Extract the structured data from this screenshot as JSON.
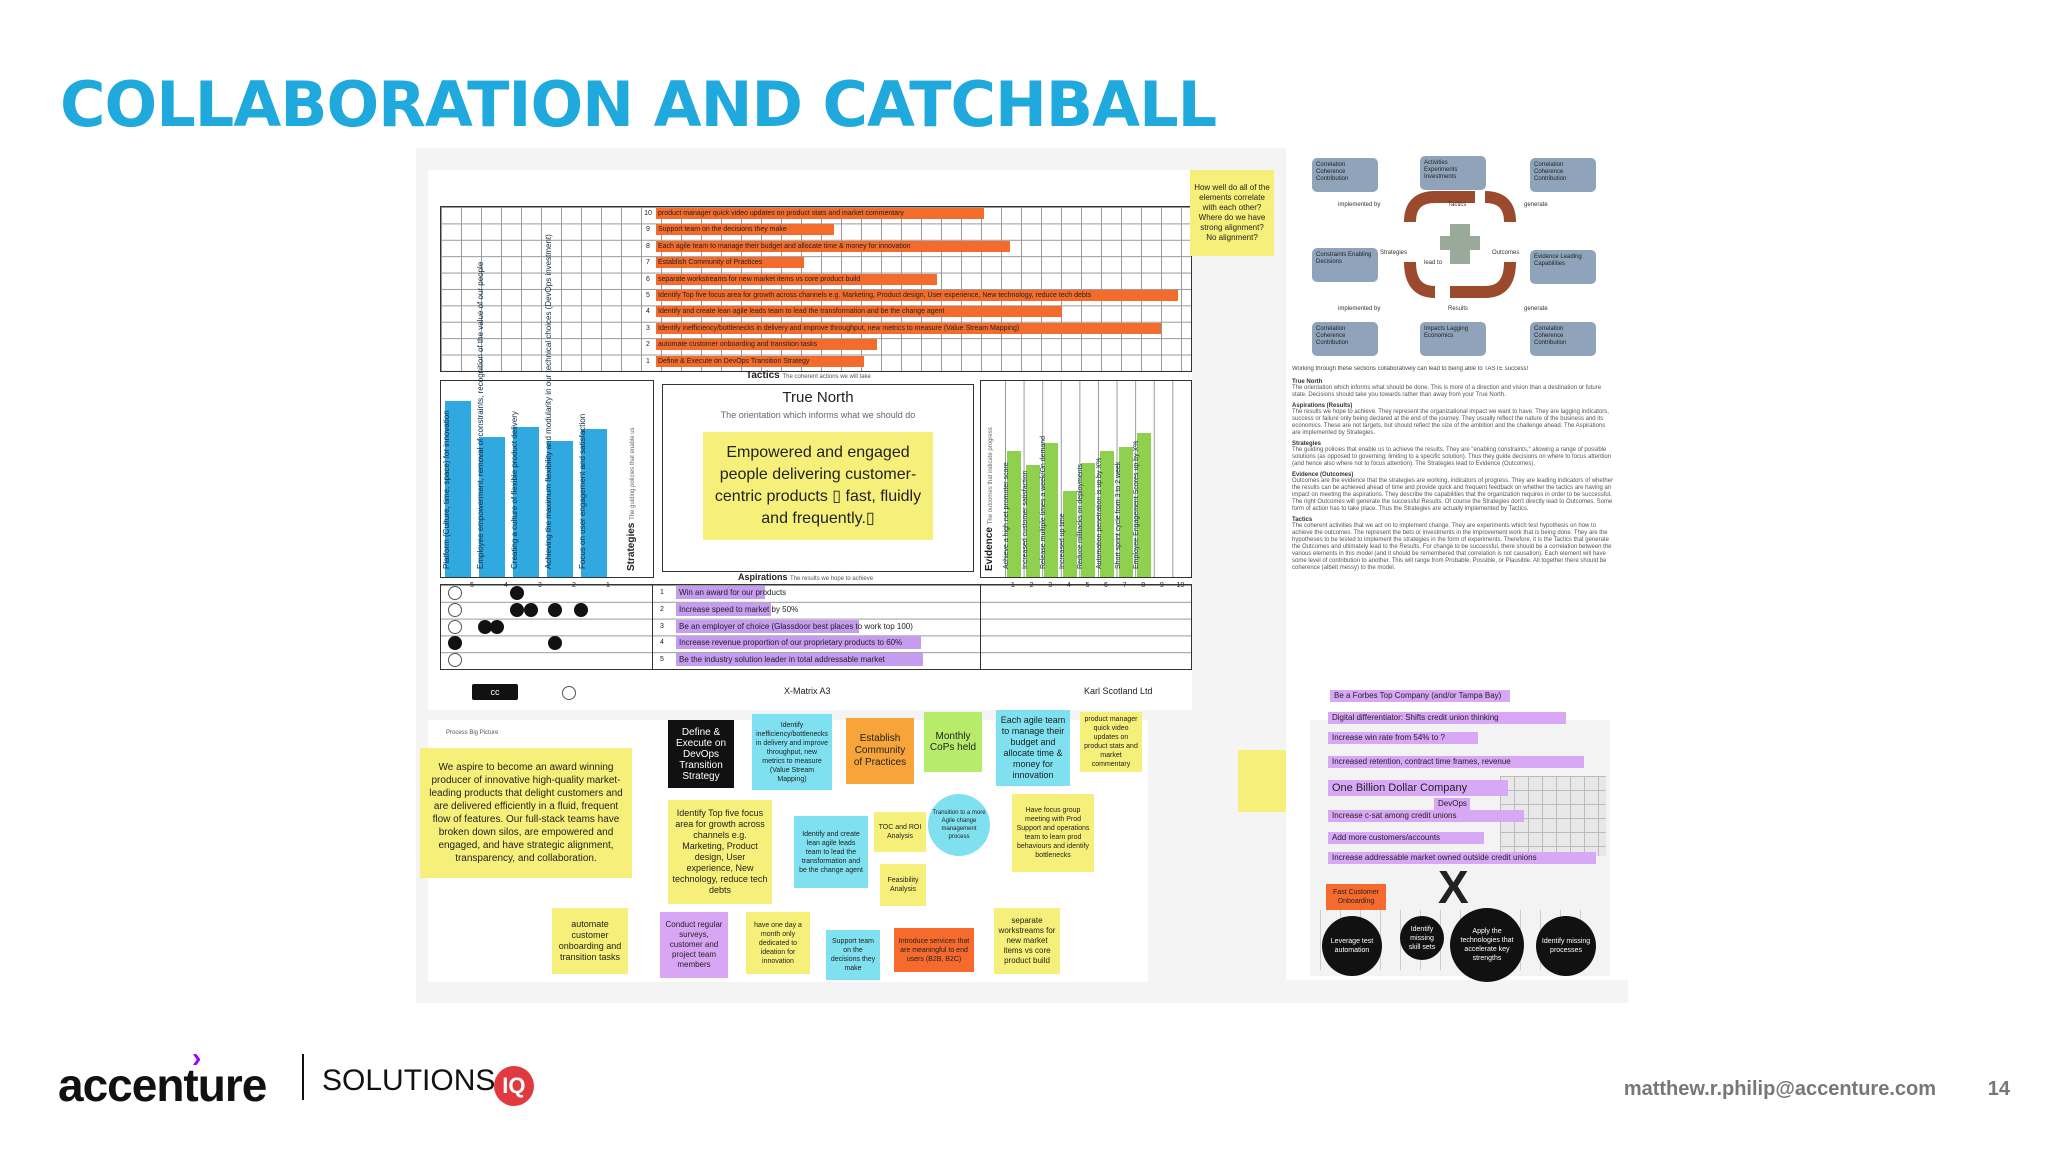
{
  "title": "COLLABORATION AND CATCHBALL",
  "xmatrix": {
    "tactics": [
      {
        "n": "10",
        "text": "product manager quick video updates on product stats and market commentary"
      },
      {
        "n": "9",
        "text": "Support team on the decisions they make"
      },
      {
        "n": "8",
        "text": "Each agile team  to manage their budget and allocate time & money for innovation"
      },
      {
        "n": "7",
        "text": "Establish Community of Practices"
      },
      {
        "n": "6",
        "text": "separate workstreams for new market items vs core product build"
      },
      {
        "n": "5",
        "text": "Identify  Top five focus area for growth across channels e.g. Marketing, Product design, User experience, New technology, reduce tech debts"
      },
      {
        "n": "4",
        "text": "Identify and create lean agile leads team to lead the transformation and be the change agent"
      },
      {
        "n": "3",
        "text": "Identify inefficiency/bottlenecks in delivery and improve throughput, new metrics to measure (Value Stream Mapping)"
      },
      {
        "n": "2",
        "text": "automate customer onboarding and transition tasks"
      },
      {
        "n": "1",
        "text": "Define & Execute on DevOps Transition Strategy"
      }
    ],
    "tactics_label": "Tactics",
    "tactics_sub": "The coherent actions we will take",
    "strategies_label": "Strategies",
    "strategies_sub": "The guiding policies that enable us",
    "strategies": [
      {
        "n": "5",
        "text": "Platform (Culture, time, space) for innovation"
      },
      {
        "n": "4",
        "text": "Employee empowerment, removal of constraints, recognition of the value of our people"
      },
      {
        "n": "3",
        "text": "Creating a culture of flexible product delivery"
      },
      {
        "n": "2",
        "text": "Achieving the maximum flexibility  and modularity in our technical choices (DevOps investment)"
      },
      {
        "n": "1",
        "text": "Focus on user engagement and satisfaction"
      }
    ],
    "true_north_title": "True North",
    "true_north_sub": "The orientation which informs what we should do",
    "true_north_text": "Empowered and engaged people delivering customer-centric products ▯ fast, fluidly and frequently.▯",
    "evidence_label": "Evidence",
    "evidence_sub": "The outcomes that indicate progress",
    "evidence": [
      {
        "n": "1",
        "text": "Achieve a high net promoter score"
      },
      {
        "n": "2",
        "text": "Increased customer satisfaction"
      },
      {
        "n": "3",
        "text": "Release multiple times a week/On demand"
      },
      {
        "n": "4",
        "text": "Increased up time"
      },
      {
        "n": "5",
        "text": "Reduce rollbacks on deployments"
      },
      {
        "n": "6",
        "text": "Automation penetration is up by X%"
      },
      {
        "n": "7",
        "text": "Short sprint cycle  from 3 to 2 week"
      },
      {
        "n": "8",
        "text": "Employee Engagement Scores up by X%"
      },
      {
        "n": "9",
        "text": ""
      },
      {
        "n": "10",
        "text": ""
      }
    ],
    "aspirations_label": "Aspirations",
    "aspirations_sub": "The results we hope to achieve",
    "aspirations": [
      {
        "n": "1",
        "text": "Win an award for our products"
      },
      {
        "n": "2",
        "text": "Increase speed to market by 50%"
      },
      {
        "n": "3",
        "text": "Be an employer of choice (Glassdoor best places to work top 100)"
      },
      {
        "n": "4",
        "text": "Increase revenue proportion of our proprietary products to 60%"
      },
      {
        "n": "5",
        "text": "Be the industry solution leader in total addressable market"
      }
    ],
    "footer_center": "X-Matrix A3",
    "footer_right": "Karl Scotland Ltd",
    "cc_label": "cc"
  },
  "question_note": "How well do all of the elements correlate with each other? Where do we have strong alignment? No alignment?",
  "process_label": "Process Big Picture",
  "stickies": {
    "aspiration": "We aspire to become an award winning producer of innovative high-quality market-leading products that delight customers and are delivered efficiently in a fluid, frequent flow of features. Our full-stack teams have broken down silos, are empowered and engaged, and have strategic alignment, transparency, and collaboration.",
    "devops": "Define & Execute on DevOps Transition Strategy",
    "inefficiency": "Identify inefficiency/bottlenecks in delivery and improve throughput, new metrics to measure (Value Stream Mapping)",
    "community": "Establish Community of Practices",
    "cops": "Monthly CoPs held",
    "budget": "Each agile team to manage their budget and allocate time & money for innovation",
    "pm_video": "product manager quick video updates on product stats and market commentary",
    "top_five": "Identify  Top five focus area for growth across channels e.g. Marketing, Product design, User experience, New technology, reduce tech debts",
    "lean_leads": "Identify and create lean agile leads team to lead the transformation and be the change agent",
    "toc": "TOC and ROI Analysis",
    "transition": "Transition to a more Agile change management process",
    "focus_group": "Have focus group meeting with Prod Support and operations team to learn prod behaviours and identify bottlenecks",
    "feasibility": "Feasibility Analysis",
    "automate": "automate customer onboarding and transition tasks",
    "surveys": "Conduct regular surveys, customer and project team members",
    "ideation": "have one day a month only dedicated to ideation for innovation",
    "support": "Support team on the decisions they make",
    "introduce": "Introduce services that are meaningful to end users (B2B, B2C)",
    "workstreams": "separate workstreams for new market items vs core product build"
  },
  "diagram": {
    "corners": [
      "Correlation Coherence Contribution",
      "Activities Experiments Investments",
      "Correlation Coherence Contribution",
      "Constraints Enabling Decisions",
      "Evidence Leading Capabilities",
      "Correlation Coherence Contribution",
      "Impacts Lagging Economics",
      "Correlation Coherence Contribution"
    ],
    "labels": [
      "implemented by",
      "Tactics",
      "generate",
      "Strategies",
      "lead to",
      "Outcomes",
      "implemented by",
      "Results",
      "generate"
    ]
  },
  "right_notes": {
    "intro": "Working through these sections collaboratively can lead to being able to TASTE success!",
    "sections": [
      {
        "h": "True North",
        "t": "The orientation which informs what should be done. This is more of a direction and vision than a destination or future state. Decisions should take you towards rather than away from your True North."
      },
      {
        "h": "Aspirations (Results)",
        "t": "The results we hope to achieve. They represent the organizational impact we want to have. They are lagging indicators, success or failure only being declared at the end of the journey. They usually reflect the nature of the business and its economics. These are not targets, but should reflect the size of the ambition and the challenge ahead. The Aspirations are implemented by Strategies."
      },
      {
        "h": "Strategies",
        "t": "The guiding policies that enable us to achieve the results. They are \"enabling constraints,\" allowing a range of possible solutions (as opposed to governing; limiting to a specific solution). Thus they guide decisions on where to focus attention (and hence also where not to focus attention). The Strategies lead to Evidence (Outcomes)."
      },
      {
        "h": "Evidence (Outcomes)",
        "t": "Outcomes are the evidence that the strategies are working, indicators of progress. They are leading indicators of whether the results can be achieved ahead of time and provide quick and frequent feedback on whether the tactics are having an impact on meeting the aspirations. They describe the capabilities that the organization requires in order to be successful. The right Outcomes will generate the successful Results. Of course the Strategies don't directly lead to Outcomes. Some form of action has to take place. Thus the Strategies are actually implemented by Tactics."
      },
      {
        "h": "Tactics",
        "t": "The coherent activities that we act on to implement change. They are experiments which test hypothesis on how to achieve the outcomes. The represent the bets or investments in the improvement work that is being done. They are the hypotheses to be tested to implement the strategies in the form of experiments. Therefore, it is the Tactics that generate the Outcomes and ultimately lead to the Results. For change to be successful, there should be a correlation between the various elements in this model (and it should be remembered that correlation is not causation). Each element will have some level of contribution to another. This will range from Probable, Possible, or Plausible. All together there should be coherence (albeit messy) to the model."
      }
    ],
    "highlights": [
      "Be a Forbes Top Company (and/or Tampa Bay)",
      "Digital differentiator: Shifts credit union thinking",
      "Increase win rate from 54% to ?",
      "Increased retention, contract time frames, revenue",
      "One Billion Dollar Company",
      "DevOps",
      "Increase c-sat among credit unions",
      "Add more customers/accounts",
      "Increase addressable market owned outside credit unions"
    ],
    "mini_labels": [
      "Fast Customer Onboarding",
      "Leverage test automation",
      "Identify missing skill sets",
      "Apply the technologies that accelerate key strengths",
      "Identify missing processes"
    ],
    "x_letter": "X"
  },
  "footer": {
    "brand": "accenture",
    "solutions": "SOLUTIONS",
    "iq": "IQ",
    "email": "matthew.r.philip@accenture.com",
    "page": "14"
  }
}
